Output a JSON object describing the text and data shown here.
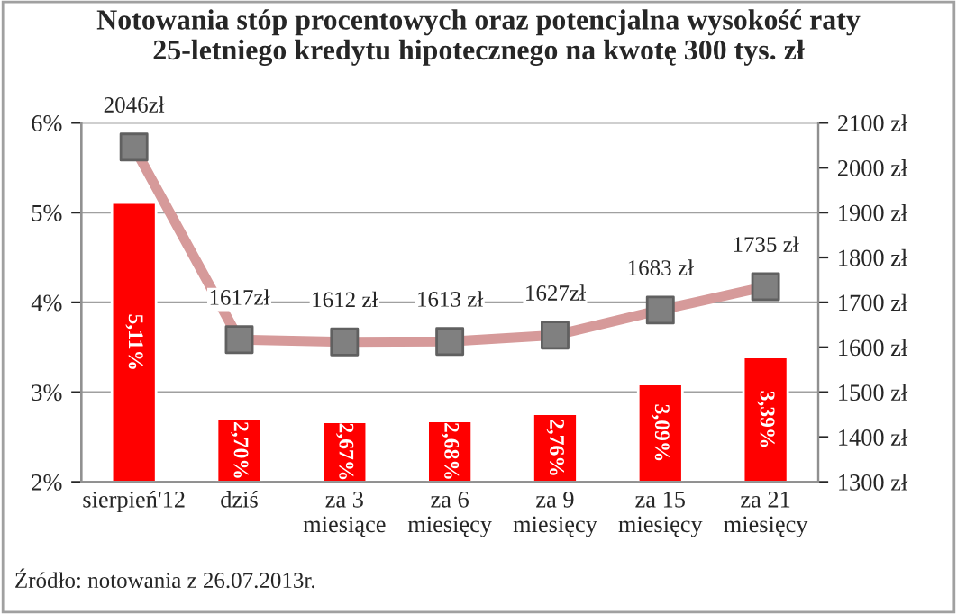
{
  "chart_data": {
    "type": "bar",
    "title": "Notowania stóp procentowych oraz potencjalna wysokość raty\n25-letniego kredytu hipotecznego na kwotę 300 tys. zł",
    "categories": [
      "sierpień'12",
      "dziś",
      "za 3\nmiesiące",
      "za 6\nmiesięcy",
      "za 9\nmiesięcy",
      "za 15\nmiesięcy",
      "za 21\nmiesięcy"
    ],
    "series": [
      {
        "color": "#ff0000",
        "values": [
          5.11,
          2.7,
          2.67,
          2.68,
          2.76,
          3.09,
          3.39
        ],
        "value_labels": [
          "5,11%",
          "2,70%",
          "2,67%",
          "2,68%",
          "2,76%",
          "3,09%",
          "3,39%"
        ]
      },
      {
        "type": "line",
        "axis": "y2",
        "color": "#d69a9a",
        "marker": "none",
        "values": [
          2046,
          1617,
          1612,
          1613,
          1627,
          1683,
          1735
        ],
        "value_labels": [
          "2046zł",
          "1617zł",
          "1612 zł",
          "1613 zł",
          "1627zł",
          "1683 zł",
          "1735 zł"
        ]
      },
      {
        "type": "scatter",
        "axis": "y2",
        "color": "#808080",
        "marker": "square",
        "values": [
          2046,
          1617,
          1612,
          1613,
          1627,
          1683,
          1735
        ]
      }
    ],
    "ylim": [
      2,
      6
    ],
    "yticks": [
      {
        "value": 2,
        "label": "2%"
      },
      {
        "value": 3,
        "label": "3%"
      },
      {
        "value": 4,
        "label": "4%"
      },
      {
        "value": 5,
        "label": "5%"
      },
      {
        "value": 6,
        "label": "6%"
      }
    ],
    "y2lim": [
      1300,
      2100
    ],
    "y2ticks": [
      {
        "value": 1300,
        "label": "1300 zł"
      },
      {
        "value": 1400,
        "label": "1400 zł"
      },
      {
        "value": 1500,
        "label": "1500 zł"
      },
      {
        "value": 1600,
        "label": "1600 zł"
      },
      {
        "value": 1700,
        "label": "1700 zł"
      },
      {
        "value": 1800,
        "label": "1800 zł"
      },
      {
        "value": 1900,
        "label": "1900 zł"
      },
      {
        "value": 2000,
        "label": "2000 zł"
      },
      {
        "value": 2100,
        "label": "2100 zł"
      }
    ],
    "grid": "y",
    "line_style": "solid",
    "annotations": [
      "Źródło: notowania z 26.07.2013r."
    ]
  }
}
